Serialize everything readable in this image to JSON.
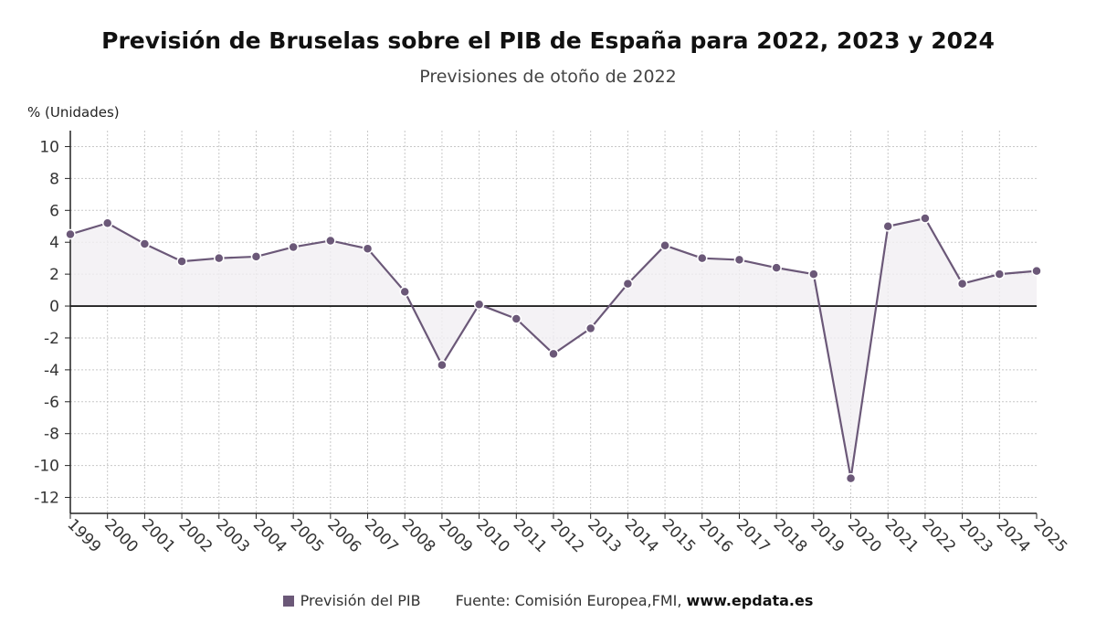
{
  "title": "Previsión de Bruselas sobre el PIB de España para 2022, 2023 y 2024",
  "subtitle": "Previsiones de otoño de 2022",
  "colors": {
    "series": "#6b5878",
    "area": "#f1eff3",
    "grid": "#c8c8c8",
    "axis": "#222222"
  },
  "footer": {
    "legend_label": "Previsión del PIB",
    "source_prefix": "Fuente: Comisión Europea,FMI,",
    "source_site": "www.epdata.es"
  },
  "chart_data": {
    "type": "line",
    "title": "Previsión de Bruselas sobre el PIB de España para 2022, 2023 y 2024",
    "subtitle": "Previsiones de otoño de 2022",
    "xlabel": "",
    "ylabel": "% (Unidades)",
    "ylim": [
      -13,
      11
    ],
    "yticks": [
      10,
      8,
      6,
      4,
      2,
      0,
      -2,
      -4,
      -6,
      -8,
      -10,
      -12
    ],
    "grid": true,
    "legend": "bottom",
    "categories": [
      "1999",
      "2000",
      "2001",
      "2002",
      "2003",
      "2004",
      "2005",
      "2006",
      "2007",
      "2008",
      "2009",
      "2010",
      "2011",
      "2012",
      "2013",
      "2014",
      "2015",
      "2016",
      "2017",
      "2018",
      "2019",
      "2020",
      "2021",
      "2022",
      "2023",
      "2024",
      "2025"
    ],
    "series": [
      {
        "name": "Previsión del PIB",
        "values": [
          4.5,
          5.2,
          3.9,
          2.8,
          3.0,
          3.1,
          3.7,
          4.1,
          3.6,
          0.9,
          -3.7,
          0.1,
          -0.8,
          -3.0,
          -1.4,
          1.4,
          3.8,
          3.0,
          2.9,
          2.4,
          2.0,
          -10.8,
          5.0,
          5.5,
          1.4,
          2.0,
          2.2
        ]
      }
    ]
  }
}
